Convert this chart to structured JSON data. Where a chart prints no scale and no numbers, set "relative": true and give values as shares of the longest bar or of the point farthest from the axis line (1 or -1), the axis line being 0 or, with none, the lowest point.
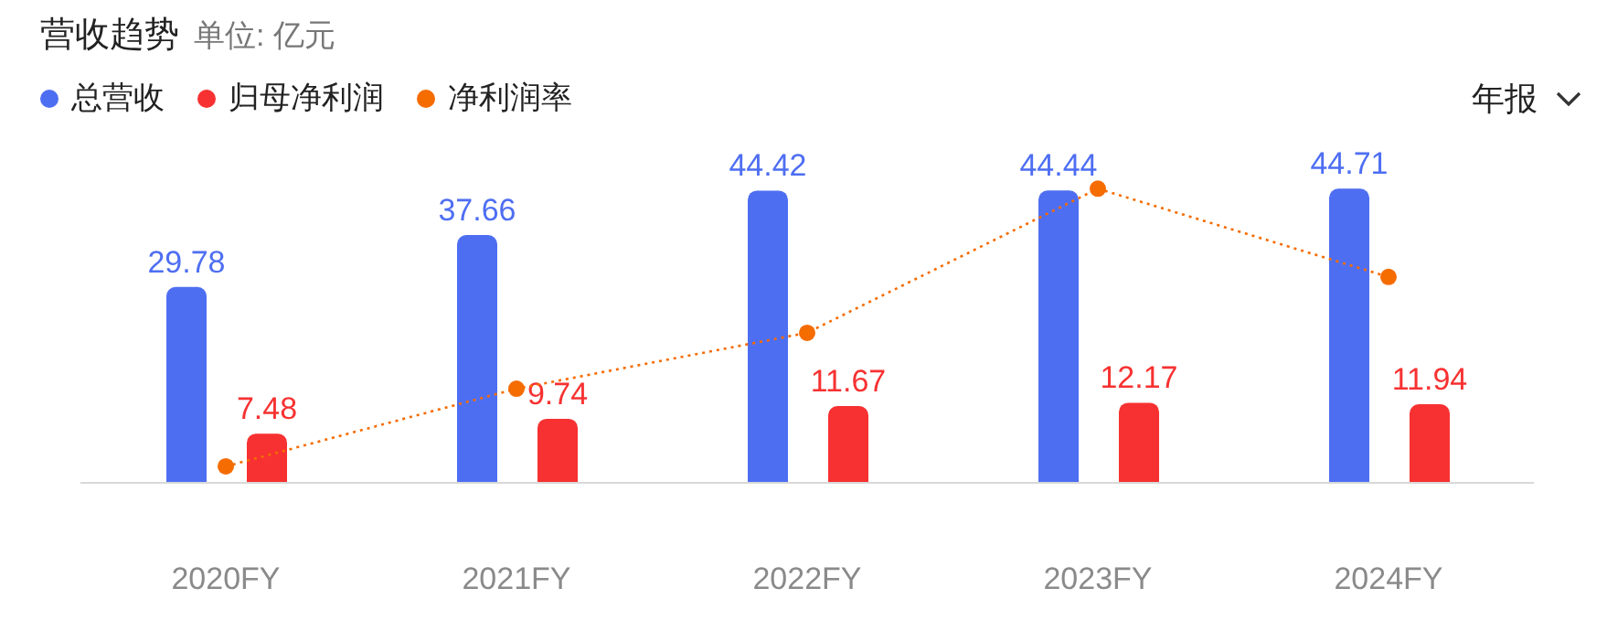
{
  "chart_data": [
    {
      "type": "bar",
      "title": "营收趋势",
      "subtitle": "单位: 亿元",
      "categories": [
        "2020FY",
        "2021FY",
        "2022FY",
        "2023FY",
        "2024FY"
      ],
      "series": [
        {
          "name": "总营收",
          "color": "#4e6ef2",
          "values": [
            29.78,
            37.66,
            44.42,
            44.44,
            44.71
          ],
          "value_labels": [
            "29.78",
            "37.66",
            "44.42",
            "44.44",
            "44.71"
          ]
        },
        {
          "name": "归母净利润",
          "color": "#f73131",
          "values": [
            7.48,
            9.74,
            11.67,
            12.17,
            11.94
          ],
          "value_labels": [
            "7.48",
            "9.74",
            "11.67",
            "12.17",
            "11.94"
          ]
        }
      ],
      "legend": "top left",
      "annotations": [
        "年报"
      ]
    },
    {
      "type": "line",
      "categories": [
        null,
        null,
        null,
        null,
        null
      ],
      "relative": true,
      "series": [
        {
          "name": "净利润率",
          "color": "#f56c00",
          "values": [
            0.056,
            0.32,
            0.51,
            1,
            0.7
          ]
        }
      ],
      "legend": "top left",
      "marker": "circle",
      "line_style": "dotted"
    }
  ]
}
